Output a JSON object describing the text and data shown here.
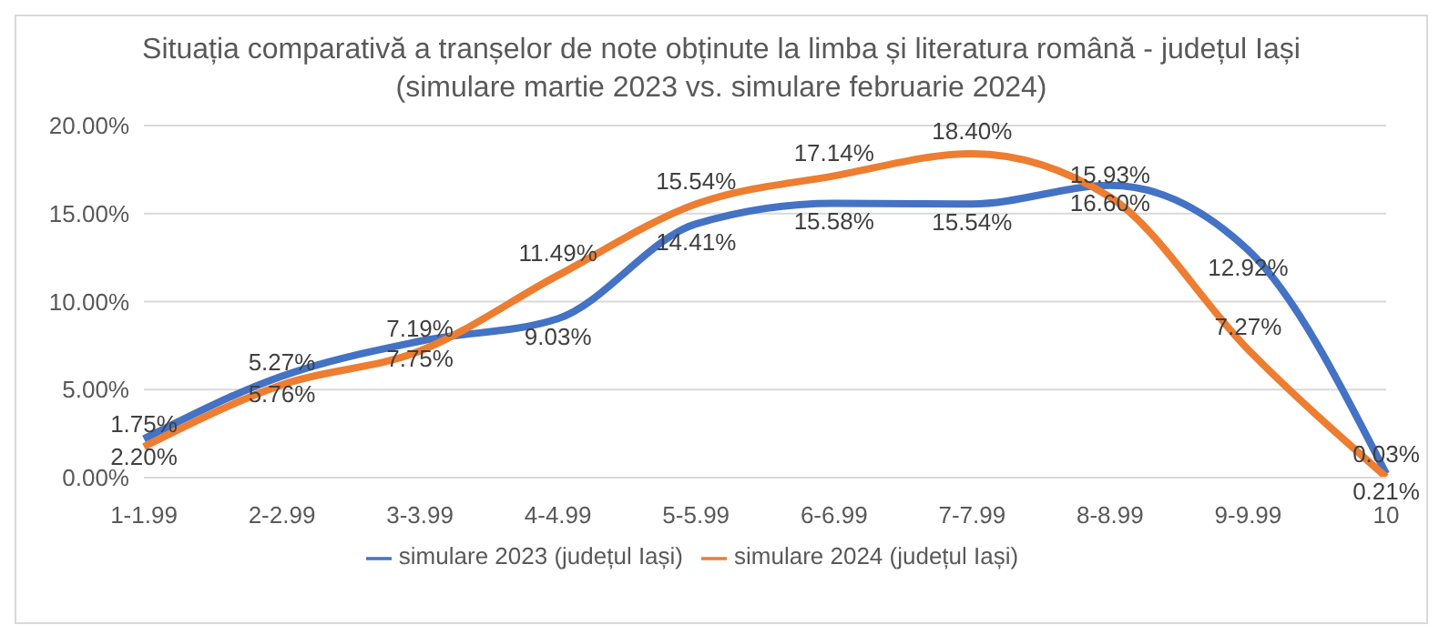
{
  "chart_data": {
    "type": "line",
    "title": "Situația comparativă a tranșelor de note obținute la limba și literatura română - județul Iași",
    "subtitle": "(simulare martie 2023 vs. simulare februarie 2024)",
    "categories": [
      "1-1.99",
      "2-2.99",
      "3-3.99",
      "4-4.99",
      "5-5.99",
      "6-6.99",
      "7-7.99",
      "8-8.99",
      "9-9.99",
      "10"
    ],
    "series": [
      {
        "name": "simulare 2023 (județul Iași)",
        "color": "#4472c4",
        "values": [
          2.2,
          5.76,
          7.75,
          9.03,
          14.41,
          15.58,
          15.54,
          16.6,
          12.92,
          0.21
        ],
        "value_labels": [
          "2.20%",
          "5.76%",
          "7.75%",
          "9.03%",
          "14.41%",
          "15.58%",
          "15.54%",
          "16.60%",
          "12.92%",
          "0.21%"
        ]
      },
      {
        "name": "simulare 2024 (județul Iași)",
        "color": "#ed7d31",
        "values": [
          1.75,
          5.27,
          7.19,
          11.49,
          15.54,
          17.14,
          18.4,
          15.93,
          7.27,
          0.03
        ],
        "value_labels": [
          "1.75%",
          "5.27%",
          "7.19%",
          "11.49%",
          "15.54%",
          "17.14%",
          "18.40%",
          "15.93%",
          "7.27%",
          "0.03%"
        ]
      }
    ],
    "ylim": [
      0,
      20
    ],
    "yticks": [
      {
        "value": 0,
        "label": "0.00%"
      },
      {
        "value": 5,
        "label": "5.00%"
      },
      {
        "value": 10,
        "label": "10.00%"
      },
      {
        "value": 15,
        "label": "15.00%"
      },
      {
        "value": 20,
        "label": "20.00%"
      }
    ],
    "grid": "y",
    "legend": "bottom",
    "marker": "none",
    "line_style": "solid"
  }
}
